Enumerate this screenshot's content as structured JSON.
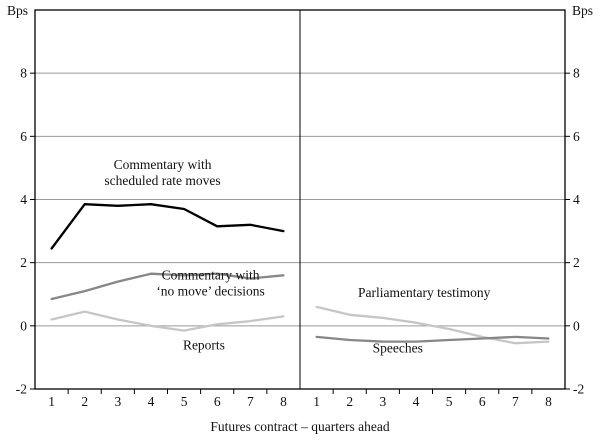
{
  "chart_data": {
    "type": "line",
    "title": "",
    "unit_label": "Bps",
    "xlabel": "Futures contract – quarters ahead",
    "ylim": [
      -2,
      10
    ],
    "yticks": [
      -2,
      0,
      2,
      4,
      6,
      8
    ],
    "gridlines": [
      0,
      2,
      4,
      6,
      8
    ],
    "x": [
      1,
      2,
      3,
      4,
      5,
      6,
      7,
      8
    ],
    "legend_position": "in-plot-annotations",
    "grid": "horizontal-only",
    "colors": {
      "black_line": "#000000",
      "dark_gray_line": "#878787",
      "light_gray_line": "#c6c6c6",
      "grid": "#999999",
      "frame": "#000000",
      "text": "#111111"
    },
    "panels": [
      {
        "name": "left-panel",
        "series": [
          {
            "name": "Commentary with scheduled rate moves",
            "color_key": "black_line",
            "values": [
              2.45,
              3.85,
              3.8,
              3.85,
              3.7,
              3.15,
              3.2,
              3.0
            ]
          },
          {
            "name": "Commentary with 'no move' decisions",
            "color_key": "dark_gray_line",
            "values": [
              0.85,
              1.1,
              1.4,
              1.65,
              1.6,
              1.65,
              1.5,
              1.6
            ]
          },
          {
            "name": "Reports",
            "color_key": "light_gray_line",
            "values": [
              0.2,
              0.45,
              0.2,
              0.0,
              -0.15,
              0.05,
              0.15,
              0.3
            ]
          }
        ],
        "annotations": [
          {
            "text": "Commentary with\nscheduled rate moves",
            "x": 4.35,
            "y": 4.85
          },
          {
            "text": "Commentary with\n‘no move’ decisions",
            "x": 5.8,
            "y": 1.35
          },
          {
            "text": "Reports",
            "x": 5.6,
            "y": -0.6
          }
        ]
      },
      {
        "name": "right-panel",
        "series": [
          {
            "name": "Parliamentary testimony",
            "color_key": "light_gray_line",
            "values": [
              0.6,
              0.35,
              0.25,
              0.1,
              -0.1,
              -0.35,
              -0.55,
              -0.5
            ]
          },
          {
            "name": "Speeches",
            "color_key": "dark_gray_line",
            "values": [
              -0.35,
              -0.45,
              -0.5,
              -0.5,
              -0.45,
              -0.4,
              -0.35,
              -0.4
            ]
          }
        ],
        "annotations": [
          {
            "text": "Parliamentary testimony",
            "x": 4.25,
            "y": 1.05
          },
          {
            "text": "Speeches",
            "x": 3.45,
            "y": -0.7
          }
        ]
      }
    ]
  }
}
